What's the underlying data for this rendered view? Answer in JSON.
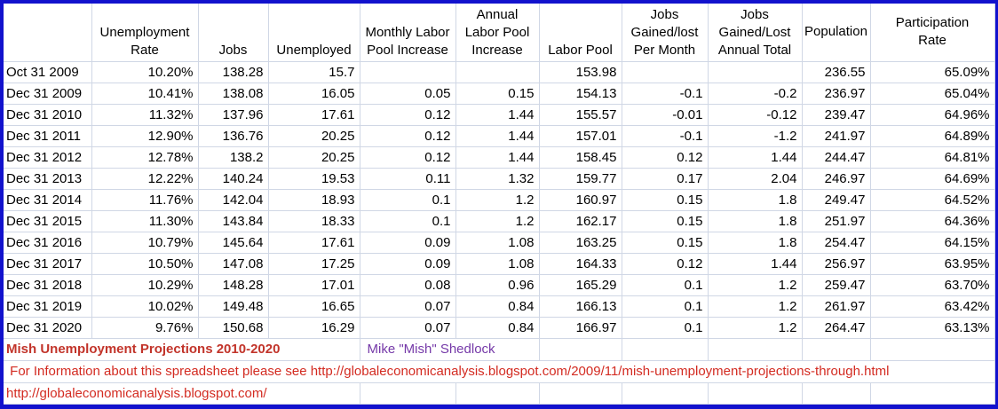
{
  "app": {
    "kind": "spreadsheet",
    "sheet_title": "Mish Unemployment Projections 2010-2020"
  },
  "colors": {
    "frame_border_blue": "#1212cd",
    "gridline_blue_gray": "#d0d7e5",
    "title_red": "#c2342a",
    "link_red": "#d32b21",
    "author_purple": "#7539a8",
    "cell_text": "#000000",
    "background": "#ffffff"
  },
  "table": {
    "columns": [
      {
        "key": "date",
        "label": ""
      },
      {
        "key": "unemployment_rate",
        "label": "Unemployment\nRate"
      },
      {
        "key": "jobs",
        "label": "Jobs"
      },
      {
        "key": "unemployed",
        "label": "Unemployed"
      },
      {
        "key": "monthly_labor_pool_increase",
        "label": "Monthly Labor\nPool Increase"
      },
      {
        "key": "annual_labor_pool_increase",
        "label": "Annual\nLabor Pool\nIncrease"
      },
      {
        "key": "labor_pool",
        "label": "Labor Pool"
      },
      {
        "key": "jobs_gained_lost_per_month",
        "label": "Jobs\nGained/lost\nPer Month"
      },
      {
        "key": "jobs_gained_lost_annual_total",
        "label": "Jobs\nGained/Lost\nAnnual Total"
      },
      {
        "key": "population",
        "label": "Population"
      },
      {
        "key": "participation_rate",
        "label": "Participation\nRate"
      }
    ],
    "rows": [
      [
        "Oct 31 2009",
        "10.20%",
        "138.28",
        "15.7",
        "",
        "",
        "153.98",
        "",
        "",
        "236.55",
        "65.09%"
      ],
      [
        "Dec 31 2009",
        "10.41%",
        "138.08",
        "16.05",
        "0.05",
        "0.15",
        "154.13",
        "-0.1",
        "-0.2",
        "236.97",
        "65.04%"
      ],
      [
        "Dec 31 2010",
        "11.32%",
        "137.96",
        "17.61",
        "0.12",
        "1.44",
        "155.57",
        "-0.01",
        "-0.12",
        "239.47",
        "64.96%"
      ],
      [
        "Dec 31 2011",
        "12.90%",
        "136.76",
        "20.25",
        "0.12",
        "1.44",
        "157.01",
        "-0.1",
        "-1.2",
        "241.97",
        "64.89%"
      ],
      [
        "Dec 31 2012",
        "12.78%",
        "138.2",
        "20.25",
        "0.12",
        "1.44",
        "158.45",
        "0.12",
        "1.44",
        "244.47",
        "64.81%"
      ],
      [
        "Dec 31 2013",
        "12.22%",
        "140.24",
        "19.53",
        "0.11",
        "1.32",
        "159.77",
        "0.17",
        "2.04",
        "246.97",
        "64.69%"
      ],
      [
        "Dec 31 2014",
        "11.76%",
        "142.04",
        "18.93",
        "0.1",
        "1.2",
        "160.97",
        "0.15",
        "1.8",
        "249.47",
        "64.52%"
      ],
      [
        "Dec 31 2015",
        "11.30%",
        "143.84",
        "18.33",
        "0.1",
        "1.2",
        "162.17",
        "0.15",
        "1.8",
        "251.97",
        "64.36%"
      ],
      [
        "Dec 31 2016",
        "10.79%",
        "145.64",
        "17.61",
        "0.09",
        "1.08",
        "163.25",
        "0.15",
        "1.8",
        "254.47",
        "64.15%"
      ],
      [
        "Dec 31 2017",
        "10.50%",
        "147.08",
        "17.25",
        "0.09",
        "1.08",
        "164.33",
        "0.12",
        "1.44",
        "256.97",
        "63.95%"
      ],
      [
        "Dec 31 2018",
        "10.29%",
        "148.28",
        "17.01",
        "0.08",
        "0.96",
        "165.29",
        "0.1",
        "1.2",
        "259.47",
        "63.70%"
      ],
      [
        "Dec 31 2019",
        "10.02%",
        "149.48",
        "16.65",
        "0.07",
        "0.84",
        "166.13",
        "0.1",
        "1.2",
        "261.97",
        "63.42%"
      ],
      [
        "Dec 31 2020",
        "9.76%",
        "150.68",
        "16.29",
        "0.07",
        "0.84",
        "166.97",
        "0.1",
        "1.2",
        "264.47",
        "63.13%"
      ]
    ]
  },
  "footer": {
    "title": "Mish Unemployment Projections 2010-2020",
    "author": "Mike \"Mish\" Shedlock",
    "info": " For Information about this spreadsheet please see http://globaleconomicanalysis.blogspot.com/2009/11/mish-unemployment-projections-through.html",
    "url": "http://globaleconomicanalysis.blogspot.com/"
  }
}
